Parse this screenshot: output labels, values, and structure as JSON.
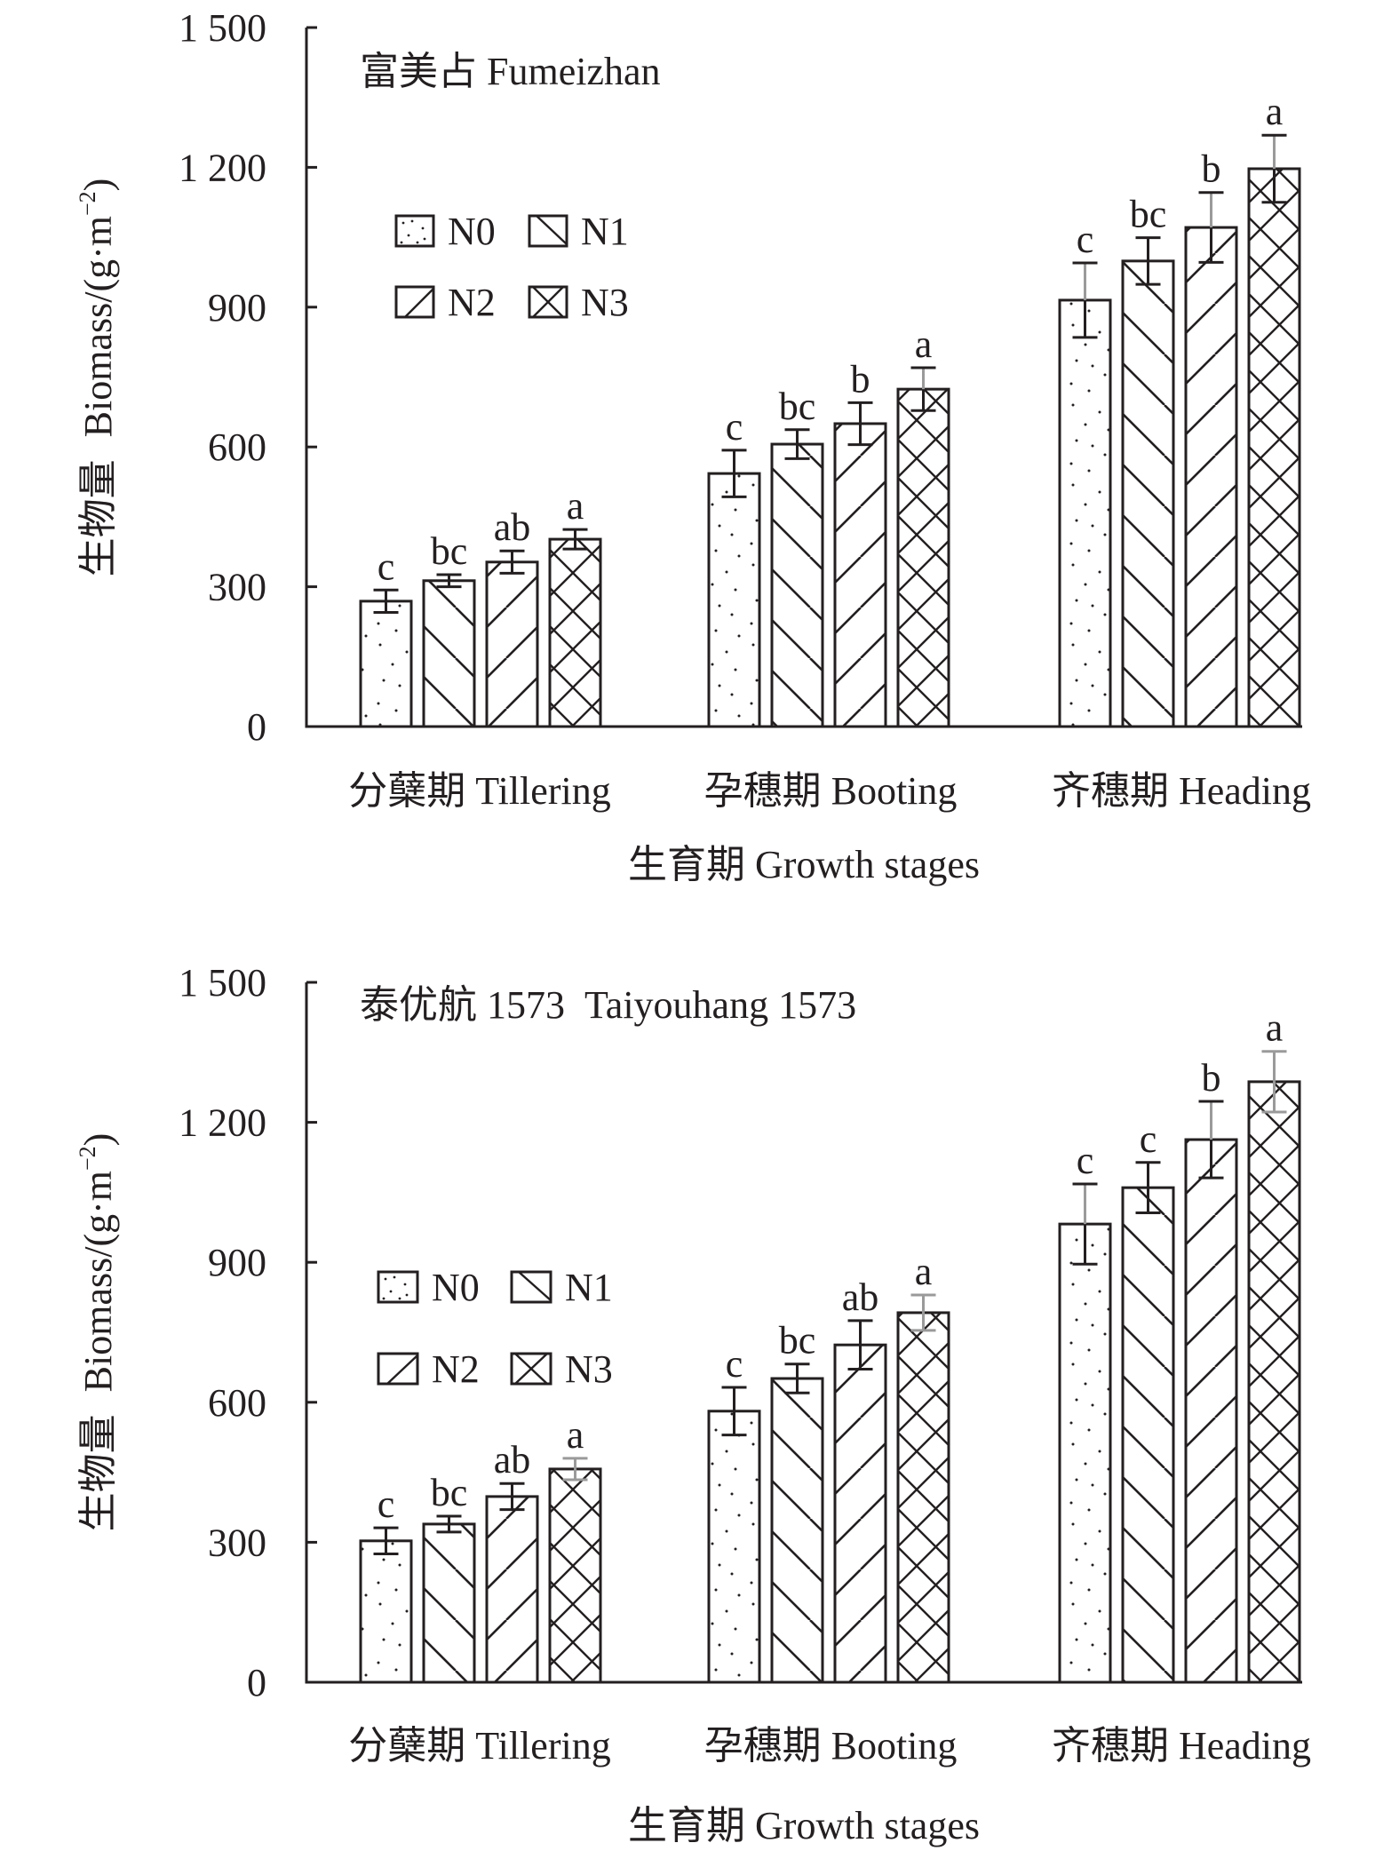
{
  "chart_data": [
    {
      "type": "bar",
      "title": "富美占 Fumeizhan",
      "xlabel": "生育期 Growth stages",
      "ylabel": "生物量 Biomass/(g·m⁻²)",
      "ylabel_parts": {
        "cn": "生物量",
        "en": "Biomass/(g·m",
        "sup": "−2",
        "close": ")"
      },
      "ylim": [
        0,
        1500
      ],
      "yticks": [
        0,
        300,
        600,
        900,
        1200,
        1500
      ],
      "ytick_labels": [
        "0",
        "300",
        "600",
        "900",
        "1 200",
        "1 500"
      ],
      "grid": false,
      "legend": {
        "position": "upper-left",
        "entries": [
          "N0",
          "N1",
          "N2",
          "N3"
        ]
      },
      "categories": [
        "分蘖期 Tillering",
        "孕穗期 Booting",
        "齐穗期 Heading"
      ],
      "series": [
        {
          "name": "N0",
          "pattern": "dots",
          "values": [
            269,
            543,
            915
          ],
          "errors": [
            24,
            50,
            80
          ],
          "letters": [
            "c",
            "c",
            "c"
          ]
        },
        {
          "name": "N1",
          "pattern": "backslash",
          "values": [
            313,
            606,
            999
          ],
          "errors": [
            13,
            31,
            50
          ],
          "letters": [
            "bc",
            "bc",
            "bc"
          ]
        },
        {
          "name": "N2",
          "pattern": "slash",
          "values": [
            353,
            650,
            1071
          ],
          "errors": [
            24,
            45,
            75
          ],
          "letters": [
            "ab",
            "b",
            "b"
          ]
        },
        {
          "name": "N3",
          "pattern": "cross",
          "values": [
            402,
            724,
            1197
          ],
          "errors": [
            21,
            46,
            72
          ],
          "letters": [
            "a",
            "a",
            "a"
          ]
        }
      ],
      "error_gray_upper": [
        [
          false,
          false,
          true
        ],
        [
          false,
          false,
          false
        ],
        [
          false,
          false,
          true
        ],
        [
          false,
          true,
          true
        ]
      ],
      "error_gray_full": [
        [
          false,
          false,
          false
        ],
        [
          false,
          false,
          false
        ],
        [
          false,
          false,
          false
        ],
        [
          false,
          false,
          false
        ]
      ]
    },
    {
      "type": "bar",
      "title": "泰优航 1573  Taiyouhang 1573",
      "xlabel": "生育期 Growth stages",
      "ylabel": "生物量 Biomass/(g·m⁻²)",
      "ylabel_parts": {
        "cn": "生物量",
        "en": "Biomass/(g·m",
        "sup": "−2",
        "close": ")"
      },
      "ylim": [
        0,
        1500
      ],
      "yticks": [
        0,
        300,
        600,
        900,
        1200,
        1500
      ],
      "ytick_labels": [
        "0",
        "300",
        "600",
        "900",
        "1 200",
        "1 500"
      ],
      "grid": false,
      "legend": {
        "position": "upper-left",
        "entries": [
          "N0",
          "N1",
          "N2",
          "N3"
        ]
      },
      "categories": [
        "分蘖期 Tillering",
        "孕穗期 Booting",
        "齐穗期 Heading"
      ],
      "series": [
        {
          "name": "N0",
          "pattern": "dots",
          "values": [
            303,
            581,
            982
          ],
          "errors": [
            28,
            51,
            86
          ],
          "letters": [
            "c",
            "c",
            "c"
          ]
        },
        {
          "name": "N1",
          "pattern": "backslash",
          "values": [
            339,
            651,
            1060
          ],
          "errors": [
            17,
            31,
            54
          ],
          "letters": [
            "bc",
            "bc",
            "c"
          ]
        },
        {
          "name": "N2",
          "pattern": "slash",
          "values": [
            398,
            723,
            1163
          ],
          "errors": [
            28,
            52,
            82
          ],
          "letters": [
            "ab",
            "ab",
            "b"
          ]
        },
        {
          "name": "N3",
          "pattern": "cross",
          "values": [
            457,
            792,
            1287
          ],
          "errors": [
            23,
            38,
            65
          ],
          "letters": [
            "a",
            "a",
            "a"
          ]
        }
      ],
      "error_gray_upper": [
        [
          false,
          false,
          true
        ],
        [
          false,
          false,
          false
        ],
        [
          false,
          false,
          true
        ],
        [
          false,
          false,
          false
        ]
      ],
      "error_gray_full": [
        [
          false,
          false,
          false
        ],
        [
          false,
          false,
          false
        ],
        [
          false,
          false,
          false
        ],
        [
          true,
          true,
          true
        ]
      ]
    }
  ],
  "colors": {
    "ink": "#231f20",
    "gray_error": "#9a9a9a",
    "background": "#ffffff"
  }
}
